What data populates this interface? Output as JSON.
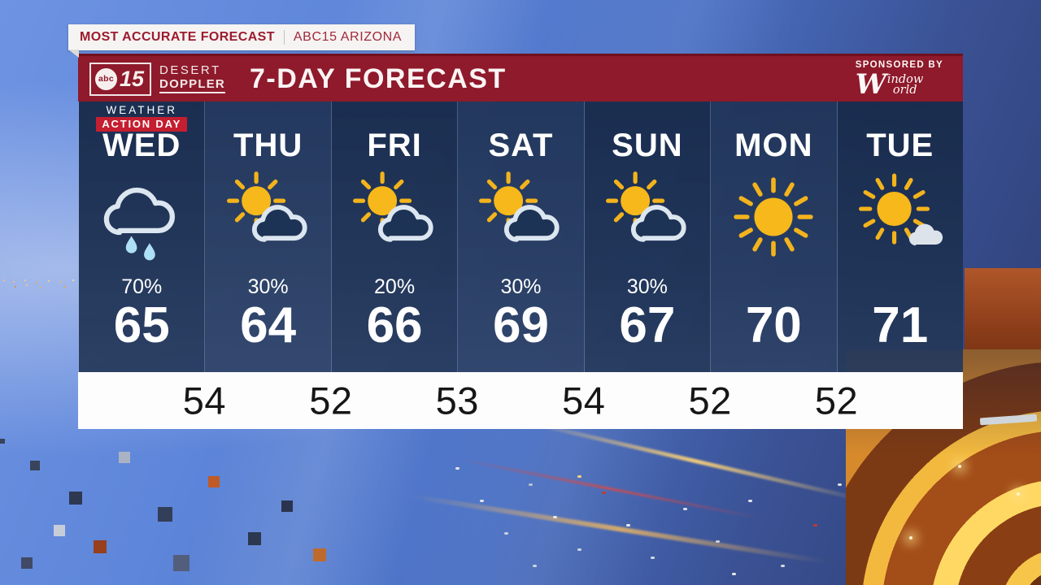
{
  "banner": {
    "primary": "MOST ACCURATE FORECAST",
    "secondary": "ABC15 ARIZONA"
  },
  "header": {
    "station": {
      "abc": "abc",
      "number": "15",
      "brand_line1": "DESERT",
      "brand_line2": "DOPPLER"
    },
    "title": "7-DAY FORECAST",
    "sponsor": {
      "label": "SPONSORED BY",
      "name_initial": "W",
      "name_top": "indow",
      "name_bottom": "orld"
    }
  },
  "forecast": {
    "action_day_badge": {
      "line1": "WEATHER",
      "line2": "ACTION DAY"
    },
    "days": [
      {
        "name": "WED",
        "icon": "rain-icon",
        "condition": "rain",
        "precip": "70%",
        "high": "65",
        "action_day": true
      },
      {
        "name": "THU",
        "icon": "partly-cloudy-icon",
        "condition": "partly cloudy",
        "precip": "30%",
        "high": "64",
        "action_day": false
      },
      {
        "name": "FRI",
        "icon": "partly-cloudy-icon",
        "condition": "partly cloudy",
        "precip": "20%",
        "high": "66",
        "action_day": false
      },
      {
        "name": "SAT",
        "icon": "partly-cloudy-icon",
        "condition": "partly cloudy",
        "precip": "30%",
        "high": "69",
        "action_day": false
      },
      {
        "name": "SUN",
        "icon": "partly-cloudy-icon",
        "condition": "partly cloudy",
        "precip": "30%",
        "high": "67",
        "action_day": false
      },
      {
        "name": "MON",
        "icon": "sunny-icon",
        "condition": "sunny",
        "precip": "",
        "high": "70",
        "action_day": false
      },
      {
        "name": "TUE",
        "icon": "mostly-sunny-icon",
        "condition": "mostly sunny",
        "precip": "",
        "high": "71",
        "action_day": false
      }
    ],
    "lows": [
      "54",
      "52",
      "53",
      "54",
      "52",
      "52"
    ]
  },
  "colors": {
    "header_maroon": "#8e1a2b",
    "action_day_red": "#c41e30",
    "column_navy": "#1d3355",
    "sun_gold": "#f6b81a",
    "cloud_outline": "#dce6f0",
    "raindrop_blue": "#aee0f6",
    "low_strip_white": "#fdfdfd"
  }
}
